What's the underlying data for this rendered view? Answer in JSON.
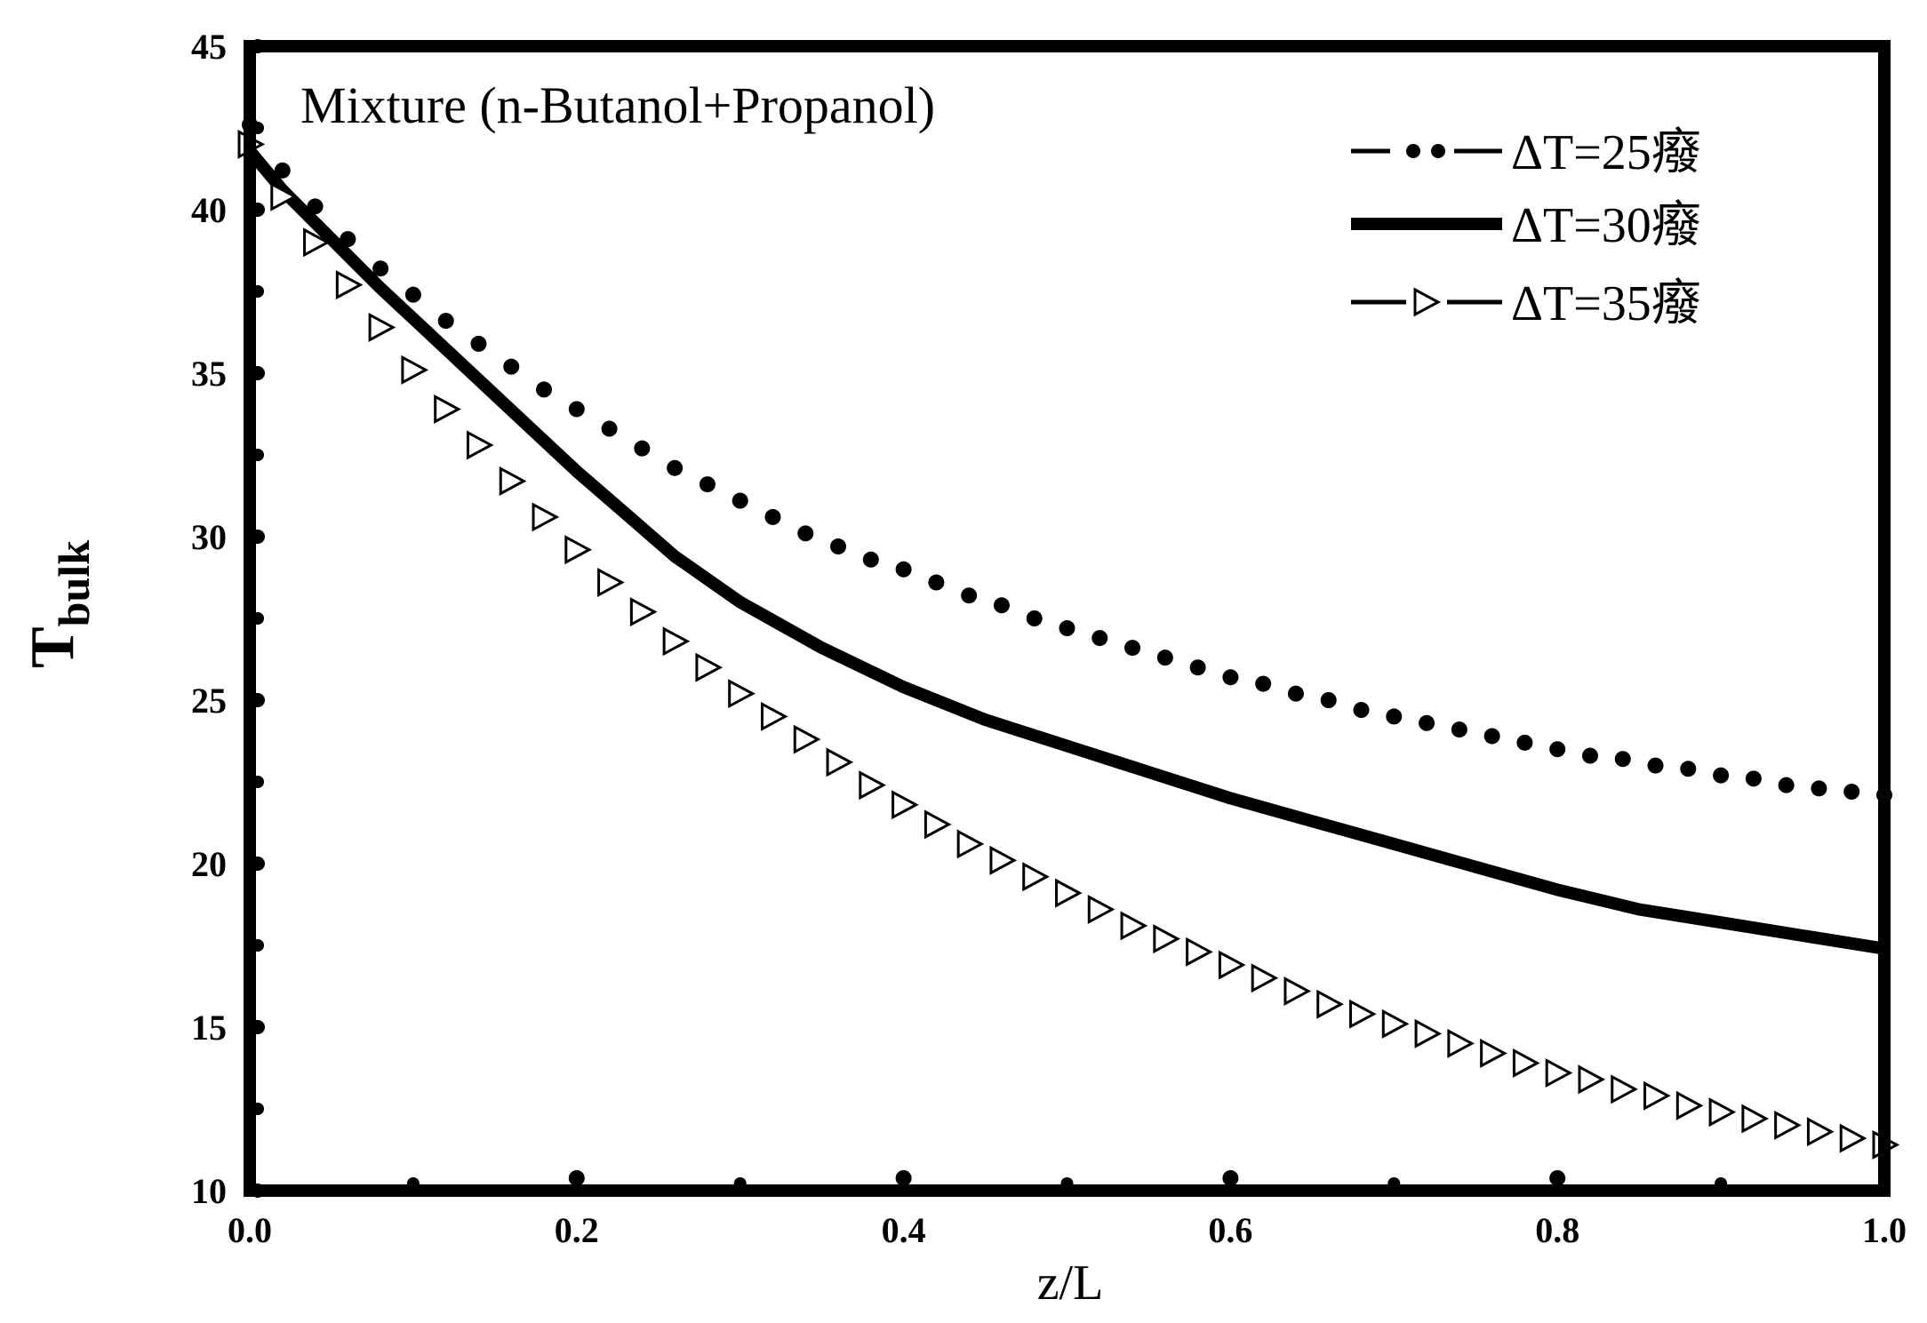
{
  "chart_data": {
    "type": "line",
    "annotation": "Mixture (n-Butanol+Propanol)",
    "xlabel": "z/L",
    "ylabel": {
      "main": "T",
      "subscript": "bulk"
    },
    "xlim": [
      0.0,
      1.0
    ],
    "ylim": [
      10,
      45
    ],
    "x_ticks": [
      "0.0",
      "0.2",
      "0.4",
      "0.6",
      "0.8",
      "1.0"
    ],
    "y_ticks": [
      "10",
      "15",
      "20",
      "25",
      "30",
      "35",
      "40",
      "45"
    ],
    "legend_position": "top-right",
    "series": [
      {
        "name": "ΔT=25癈",
        "style": "dots",
        "color": "#000000",
        "x": [
          0.0,
          0.02,
          0.04,
          0.06,
          0.08,
          0.1,
          0.12,
          0.14,
          0.16,
          0.18,
          0.2,
          0.22,
          0.24,
          0.26,
          0.28,
          0.3,
          0.32,
          0.34,
          0.36,
          0.38,
          0.4,
          0.42,
          0.44,
          0.46,
          0.48,
          0.5,
          0.52,
          0.54,
          0.56,
          0.58,
          0.6,
          0.62,
          0.64,
          0.66,
          0.68,
          0.7,
          0.72,
          0.74,
          0.76,
          0.78,
          0.8,
          0.82,
          0.84,
          0.86,
          0.88,
          0.9,
          0.92,
          0.94,
          0.96,
          0.98,
          1.0
        ],
        "y": [
          42.6,
          41.2,
          40.1,
          39.1,
          38.2,
          37.4,
          36.6,
          35.9,
          35.2,
          34.5,
          33.9,
          33.3,
          32.7,
          32.1,
          31.6,
          31.1,
          30.6,
          30.1,
          29.7,
          29.3,
          29.0,
          28.6,
          28.2,
          27.9,
          27.5,
          27.2,
          26.9,
          26.6,
          26.3,
          26.0,
          25.7,
          25.5,
          25.2,
          25.0,
          24.7,
          24.5,
          24.3,
          24.1,
          23.9,
          23.7,
          23.5,
          23.3,
          23.2,
          23.0,
          22.9,
          22.7,
          22.6,
          22.4,
          22.3,
          22.2,
          22.1
        ]
      },
      {
        "name": "ΔT=30癈",
        "style": "thick-line",
        "color": "#000000",
        "x": [
          0.0,
          0.02,
          0.05,
          0.08,
          0.11,
          0.14,
          0.17,
          0.2,
          0.23,
          0.26,
          0.3,
          0.35,
          0.4,
          0.45,
          0.5,
          0.55,
          0.6,
          0.65,
          0.7,
          0.75,
          0.8,
          0.85,
          0.9,
          0.95,
          1.0
        ],
        "y": [
          41.8,
          40.6,
          39.1,
          37.6,
          36.2,
          34.8,
          33.4,
          32.0,
          30.7,
          29.4,
          28.0,
          26.6,
          25.4,
          24.4,
          23.6,
          22.8,
          22.0,
          21.3,
          20.6,
          19.9,
          19.2,
          18.6,
          18.2,
          17.8,
          17.4
        ]
      },
      {
        "name": "ΔT=35癈",
        "style": "open-triangles",
        "color": "#000000",
        "x": [
          0.0,
          0.02,
          0.04,
          0.06,
          0.08,
          0.1,
          0.12,
          0.14,
          0.16,
          0.18,
          0.2,
          0.22,
          0.24,
          0.26,
          0.28,
          0.3,
          0.32,
          0.34,
          0.36,
          0.38,
          0.4,
          0.42,
          0.44,
          0.46,
          0.48,
          0.5,
          0.52,
          0.54,
          0.56,
          0.58,
          0.6,
          0.62,
          0.64,
          0.66,
          0.68,
          0.7,
          0.72,
          0.74,
          0.76,
          0.78,
          0.8,
          0.82,
          0.84,
          0.86,
          0.88,
          0.9,
          0.92,
          0.94,
          0.96,
          0.98,
          1.0
        ],
        "y": [
          42.0,
          40.4,
          39.0,
          37.7,
          36.4,
          35.1,
          33.9,
          32.8,
          31.7,
          30.6,
          29.6,
          28.6,
          27.7,
          26.8,
          26.0,
          25.2,
          24.5,
          23.8,
          23.1,
          22.4,
          21.8,
          21.2,
          20.6,
          20.1,
          19.6,
          19.1,
          18.6,
          18.1,
          17.7,
          17.3,
          16.9,
          16.5,
          16.1,
          15.7,
          15.4,
          15.1,
          14.8,
          14.5,
          14.2,
          13.9,
          13.6,
          13.4,
          13.1,
          12.9,
          12.6,
          12.4,
          12.2,
          12.0,
          11.8,
          11.6,
          11.4
        ]
      }
    ]
  }
}
